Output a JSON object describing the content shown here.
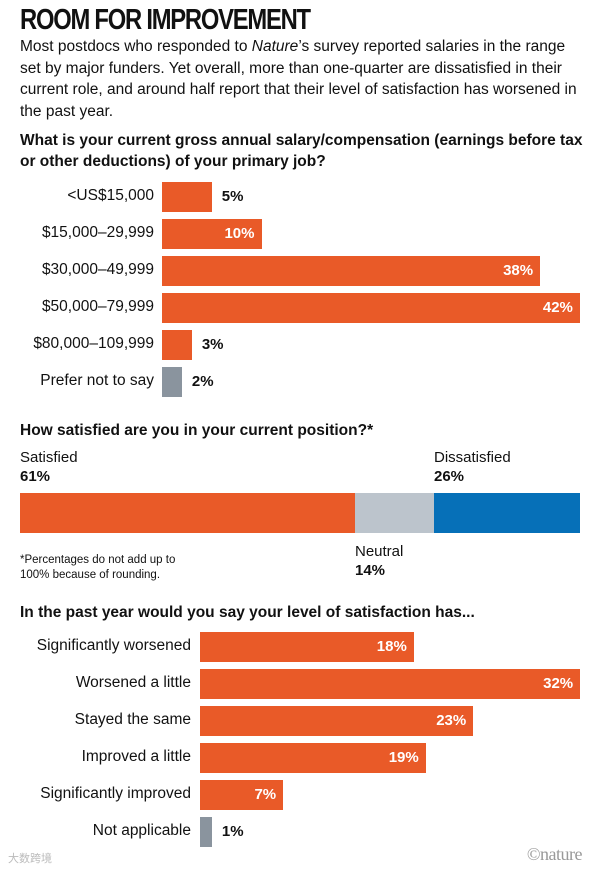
{
  "title": "ROOM FOR IMPROVEMENT",
  "intro": {
    "a": "Most postdocs who responded to ",
    "italic": "Nature",
    "b": "’s survey reported salaries in the range set by major funders. Yet overall, more than one-quarter are dissatisfied in their current role, and around half report that their level of satisfaction has worsened in the past year."
  },
  "colors": {
    "orange": "#e95a28",
    "gray": "#8a949e",
    "neutral": "#bcc4cc",
    "blue": "#0670b8"
  },
  "chart_data": [
    {
      "type": "bar",
      "orientation": "horizontal",
      "title": "What is your current gross annual salary/compensation (earnings before tax or other deductions) of your primary job?",
      "categories": [
        "<US$15,000",
        "$15,000–29,999",
        "$30,000–49,999",
        "$50,000–79,999",
        "$80,000–109,999",
        "Prefer not to say"
      ],
      "values": [
        5,
        10,
        38,
        42,
        3,
        2
      ],
      "labels": [
        "5%",
        "10%",
        "38%",
        "42%",
        "3%",
        "2%"
      ],
      "unit": "%"
    },
    {
      "type": "bar",
      "stacked": true,
      "title": "How satisfied are you in your current position?*",
      "categories": [
        "Satisfied",
        "Neutral",
        "Dissatisfied"
      ],
      "values": [
        61,
        14,
        26
      ],
      "labels": [
        "61%",
        "14%",
        "26%"
      ],
      "unit": "%",
      "footnote": "*Percentages do not add up to 100% because of rounding."
    },
    {
      "type": "bar",
      "orientation": "horizontal",
      "title": "In the past year would you say your level of satisfaction has...",
      "categories": [
        "Significantly worsened",
        "Worsened a little",
        "Stayed the same",
        "Improved a little",
        "Significantly improved",
        "Not applicable"
      ],
      "values": [
        18,
        32,
        23,
        19,
        7,
        1
      ],
      "labels": [
        "18%",
        "32%",
        "23%",
        "19%",
        "7%",
        "1%"
      ],
      "unit": "%"
    }
  ],
  "credit": "©nature",
  "watermark": "大数跨境"
}
